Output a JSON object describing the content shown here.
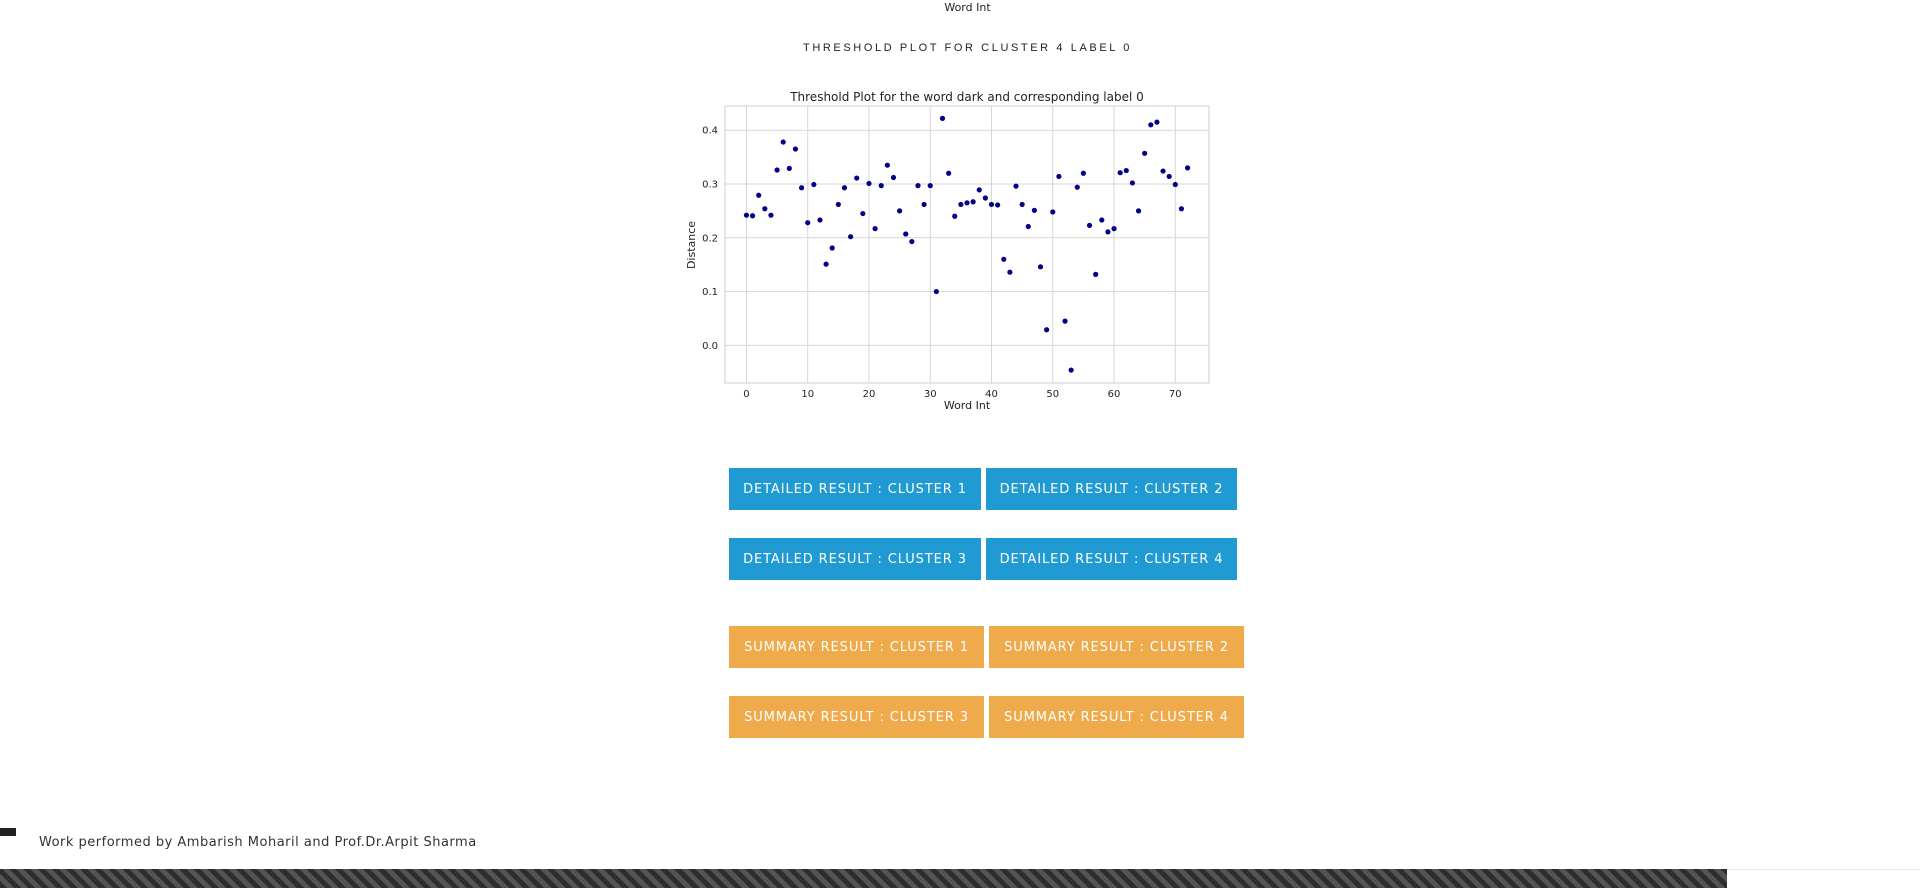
{
  "top_axis_label": "Word Int",
  "section_heading": "Threshold Plot for Cluster 4 Label 0",
  "chart_data": {
    "type": "scatter",
    "title": "Threshold Plot for the word dark and corresponding label 0",
    "xlabel": "Word Int",
    "ylabel": "Distance",
    "xlim": [
      -3.5,
      75.5
    ],
    "ylim": [
      -0.07,
      0.445
    ],
    "xticks": [
      0,
      10,
      20,
      30,
      40,
      50,
      60,
      70
    ],
    "yticks": [
      0.0,
      0.1,
      0.2,
      0.3,
      0.4
    ],
    "ytick_labels": [
      "0.0",
      "0.1",
      "0.2",
      "0.3",
      "0.4"
    ],
    "grid": true,
    "marker_color": "#00008b",
    "x": [
      0,
      1,
      2,
      3,
      4,
      5,
      6,
      7,
      8,
      9,
      10,
      11,
      12,
      13,
      14,
      15,
      16,
      17,
      18,
      19,
      20,
      21,
      22,
      23,
      24,
      25,
      26,
      27,
      28,
      29,
      30,
      31,
      32,
      33,
      34,
      35,
      36,
      37,
      38,
      39,
      40,
      41,
      42,
      43,
      44,
      45,
      46,
      47,
      48,
      49,
      50,
      51,
      52,
      53,
      54,
      55,
      56,
      57,
      58,
      59,
      60,
      61,
      62,
      63,
      64,
      65,
      66,
      67,
      68,
      69,
      70,
      71,
      72
    ],
    "y": [
      0.242,
      0.241,
      0.279,
      0.254,
      0.242,
      0.326,
      0.378,
      0.329,
      0.365,
      0.293,
      0.228,
      0.299,
      0.233,
      0.151,
      0.181,
      0.262,
      0.293,
      0.202,
      0.311,
      0.245,
      0.301,
      0.217,
      0.297,
      0.335,
      0.312,
      0.25,
      0.207,
      0.193,
      0.297,
      0.262,
      0.297,
      0.1,
      0.422,
      0.32,
      0.24,
      0.262,
      0.265,
      0.267,
      0.289,
      0.274,
      0.262,
      0.261,
      0.16,
      0.136,
      0.296,
      0.262,
      0.221,
      0.251,
      0.146,
      0.029,
      0.248,
      0.314,
      0.045,
      -0.046,
      0.294,
      0.32,
      0.223,
      0.132,
      0.233,
      0.211,
      0.217,
      0.321,
      0.325,
      0.302,
      0.25,
      0.357,
      0.41,
      0.415,
      0.324,
      0.314,
      0.299,
      0.254,
      0.33
    ]
  },
  "detailed_buttons": [
    "DETAILED RESULT : CLUSTER 1",
    "DETAILED RESULT : CLUSTER 2",
    "DETAILED RESULT : CLUSTER 3",
    "DETAILED RESULT : CLUSTER 4"
  ],
  "summary_buttons": [
    "SUMMARY RESULT : CLUSTER 1",
    "SUMMARY RESULT : CLUSTER 2",
    "SUMMARY RESULT : CLUSTER 3",
    "SUMMARY RESULT : CLUSTER 4"
  ],
  "footer": "Work performed by Ambarish Moharil and Prof.Dr.Arpit Sharma",
  "colors": {
    "detailed_button": "#1f9ad2",
    "summary_button": "#efaa4b"
  }
}
